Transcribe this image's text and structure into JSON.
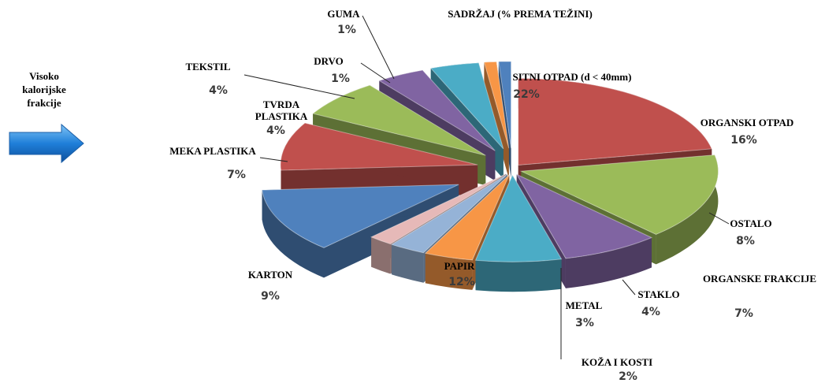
{
  "chart_data": {
    "type": "pie",
    "title": "SADRŽAJ (% PREMA TEŽINI)",
    "annotation": "Visoko kalorijske frakcije",
    "categories": [
      "SITNI OTPAD (d < 40mm)",
      "ORGANSKI OTPAD",
      "OSTALO",
      "ORGANSKE FRAKCIJE",
      "STAKLO",
      "METAL",
      "KOŽA I KOSTI",
      "PAPIR",
      "KARTON",
      "MEKA PLASTIKA",
      "TVRDA PLASTIKA",
      "TEKSTIL",
      "DRVO",
      "GUMA"
    ],
    "values": [
      22,
      16,
      8,
      7,
      4,
      3,
      2,
      12,
      9,
      7,
      4,
      4,
      1,
      1
    ],
    "value_labels": [
      "22%",
      "16%",
      "8%",
      "7%",
      "4%",
      "3%",
      "2%",
      "12%",
      "9%",
      "7%",
      "4%",
      "4%",
      "1%",
      "1%"
    ],
    "colors": [
      "#c0504d",
      "#9bbb59",
      "#8064a2",
      "#4bacc6",
      "#f79646",
      "#95b3d7",
      "#e6b9b8",
      "#4f81bd",
      "#c0504d",
      "#9bbb59",
      "#8064a2",
      "#4bacc6",
      "#f79646",
      "#4f81bd"
    ]
  }
}
